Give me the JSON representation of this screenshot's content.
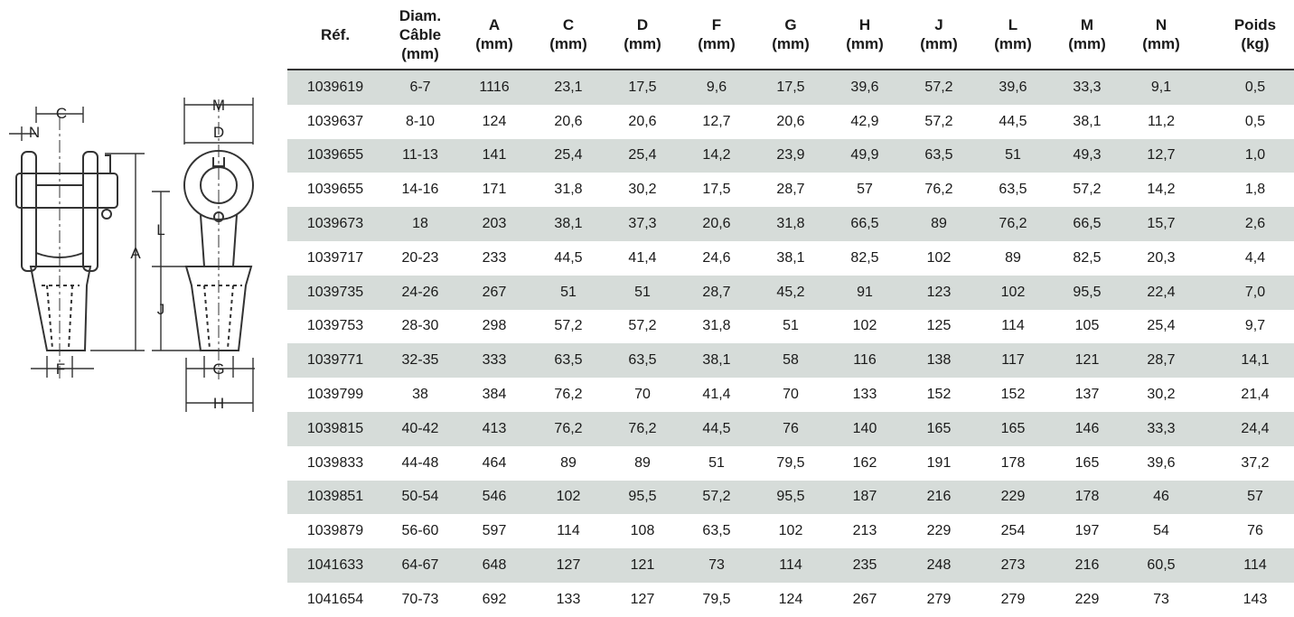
{
  "drawing": {
    "dimension_labels": [
      "C",
      "N",
      "A",
      "L",
      "J",
      "F",
      "M",
      "D",
      "G",
      "H"
    ]
  },
  "table": {
    "headers": [
      "Réf.",
      "Diam.\nCâble\n(mm)",
      "A\n(mm)",
      "C\n(mm)",
      "D\n(mm)",
      "F\n(mm)",
      "G\n(mm)",
      "H\n(mm)",
      "J\n(mm)",
      "L\n(mm)",
      "M\n(mm)",
      "N\n(mm)",
      "Poids\n(kg)"
    ],
    "rows": [
      [
        "1039619",
        "6-7",
        "1116",
        "23,1",
        "17,5",
        "9,6",
        "17,5",
        "39,6",
        "57,2",
        "39,6",
        "33,3",
        "9,1",
        "0,5"
      ],
      [
        "1039637",
        "8-10",
        "124",
        "20,6",
        "20,6",
        "12,7",
        "20,6",
        "42,9",
        "57,2",
        "44,5",
        "38,1",
        "11,2",
        "0,5"
      ],
      [
        "1039655",
        "11-13",
        "141",
        "25,4",
        "25,4",
        "14,2",
        "23,9",
        "49,9",
        "63,5",
        "51",
        "49,3",
        "12,7",
        "1,0"
      ],
      [
        "1039655",
        "14-16",
        "171",
        "31,8",
        "30,2",
        "17,5",
        "28,7",
        "57",
        "76,2",
        "63,5",
        "57,2",
        "14,2",
        "1,8"
      ],
      [
        "1039673",
        "18",
        "203",
        "38,1",
        "37,3",
        "20,6",
        "31,8",
        "66,5",
        "89",
        "76,2",
        "66,5",
        "15,7",
        "2,6"
      ],
      [
        "1039717",
        "20-23",
        "233",
        "44,5",
        "41,4",
        "24,6",
        "38,1",
        "82,5",
        "102",
        "89",
        "82,5",
        "20,3",
        "4,4"
      ],
      [
        "1039735",
        "24-26",
        "267",
        "51",
        "51",
        "28,7",
        "45,2",
        "91",
        "123",
        "102",
        "95,5",
        "22,4",
        "7,0"
      ],
      [
        "1039753",
        "28-30",
        "298",
        "57,2",
        "57,2",
        "31,8",
        "51",
        "102",
        "125",
        "114",
        "105",
        "25,4",
        "9,7"
      ],
      [
        "1039771",
        "32-35",
        "333",
        "63,5",
        "63,5",
        "38,1",
        "58",
        "116",
        "138",
        "117",
        "121",
        "28,7",
        "14,1"
      ],
      [
        "1039799",
        "38",
        "384",
        "76,2",
        "70",
        "41,4",
        "70",
        "133",
        "152",
        "152",
        "137",
        "30,2",
        "21,4"
      ],
      [
        "1039815",
        "40-42",
        "413",
        "76,2",
        "76,2",
        "44,5",
        "76",
        "140",
        "165",
        "165",
        "146",
        "33,3",
        "24,4"
      ],
      [
        "1039833",
        "44-48",
        "464",
        "89",
        "89",
        "51",
        "79,5",
        "162",
        "191",
        "178",
        "165",
        "39,6",
        "37,2"
      ],
      [
        "1039851",
        "50-54",
        "546",
        "102",
        "95,5",
        "57,2",
        "95,5",
        "187",
        "216",
        "229",
        "178",
        "46",
        "57"
      ],
      [
        "1039879",
        "56-60",
        "597",
        "114",
        "108",
        "63,5",
        "102",
        "213",
        "229",
        "254",
        "197",
        "54",
        "76"
      ],
      [
        "1041633",
        "64-67",
        "648",
        "127",
        "121",
        "73",
        "114",
        "235",
        "248",
        "273",
        "216",
        "60,5",
        "114"
      ],
      [
        "1041654",
        "70-73",
        "692",
        "133",
        "127",
        "79,5",
        "124",
        "267",
        "279",
        "279",
        "229",
        "73",
        "143"
      ]
    ]
  }
}
